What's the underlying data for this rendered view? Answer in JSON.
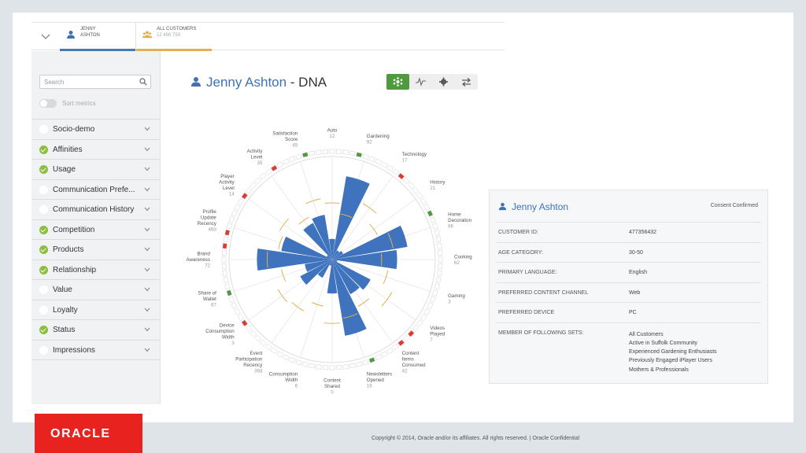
{
  "tabs": {
    "user": {
      "line1": "JENNY",
      "line2": "ASHTON"
    },
    "all": {
      "line1": "ALL CUSTOMERS",
      "line2": "12 498 750"
    }
  },
  "sidebar": {
    "search_placeholder": "Search",
    "sort_label": "Sort metrics",
    "items": [
      {
        "label": "Socio-demo",
        "checked": false
      },
      {
        "label": "Affinities",
        "checked": true
      },
      {
        "label": "Usage",
        "checked": true
      },
      {
        "label": "Communication Prefe...",
        "checked": false
      },
      {
        "label": "Communication History",
        "checked": false
      },
      {
        "label": "Competition",
        "checked": true
      },
      {
        "label": "Products",
        "checked": true
      },
      {
        "label": "Relationship",
        "checked": true
      },
      {
        "label": "Value",
        "checked": false
      },
      {
        "label": "Loyalty",
        "checked": false
      },
      {
        "label": "Status",
        "checked": true
      },
      {
        "label": "Impressions",
        "checked": false
      }
    ]
  },
  "header": {
    "name": "Jenny Ashton",
    "suffix": " - DNA"
  },
  "toolbar": {
    "buttons": [
      "dna-icon",
      "pulse-icon",
      "gear-icon",
      "swap-icon"
    ],
    "active": "dna-icon"
  },
  "colors": {
    "accent": "#3e72b5",
    "bar": "#3f73bd",
    "good": "#4f9a3f",
    "bad": "#e03a2f",
    "threshold": "#e0b052"
  },
  "chart_data": {
    "type": "polar-bar",
    "metrics": [
      {
        "name": "Auto",
        "value": "12",
        "level": 0.2
      },
      {
        "name": "Gardening",
        "value": "92",
        "level": 0.82
      },
      {
        "name": "Technology",
        "value": "17",
        "level": 0.1
      },
      {
        "name": "History",
        "value": "21",
        "level": 0.12
      },
      {
        "name": "Home Decoration",
        "value": "66",
        "level": 0.74
      },
      {
        "name": "Cooking",
        "value": "62",
        "level": 0.63
      },
      {
        "name": "Gaming",
        "value": "3",
        "level": 0.05
      },
      {
        "name": "Videos Played",
        "value": "7",
        "level": 0.42
      },
      {
        "name": "Content Items Consumed",
        "value": "42",
        "level": 0.38
      },
      {
        "name": "Newsletters Opened",
        "value": "16",
        "level": 0.75
      },
      {
        "name": "Content Shared",
        "value": "0",
        "level": 0.33
      },
      {
        "name": "Consumption Width",
        "value": "6",
        "level": 0.06
      },
      {
        "name": "Event Participation Recency",
        "value": "36d",
        "level": 0.2
      },
      {
        "name": "Device Consumption Width",
        "value": "3",
        "level": 0.35
      },
      {
        "name": "Share of Wallet",
        "value": "67",
        "level": 0.27
      },
      {
        "name": "Brand Awareness",
        "value": "72",
        "level": 0.73
      },
      {
        "name": "Profile Update Recency",
        "value": "46d",
        "level": 0.5
      },
      {
        "name": "Player Activity Level",
        "value": "14",
        "level": 0.06
      },
      {
        "name": "Activity Level",
        "value": "35",
        "level": 0.4
      },
      {
        "name": "Satisfaction Score",
        "value": "45",
        "level": 0.44
      }
    ]
  },
  "card": {
    "name": "Jenny Ashton",
    "consent": "Consent Confirmed",
    "rows": [
      {
        "key": "CUSTOMER ID:",
        "value": "477356432"
      },
      {
        "key": "AGE CATEGORY:",
        "value": "30-50"
      },
      {
        "key": "PRIMARY LANGUAGE:",
        "value": "English"
      },
      {
        "key": "PREFERRED CONTENT CHANNEL",
        "value": "Web"
      },
      {
        "key": "PREFERRED DEVICE",
        "value": "PC"
      }
    ],
    "sets_key": "MEMBER OF FOLLOWING SETS:",
    "sets": [
      "All Customers",
      "Active in Suffolk Community",
      "Experienced Gardening Enthusiasts",
      "Previously Engaged iPlayer Users",
      "Mothers & Professionals"
    ]
  },
  "footer": {
    "copyright": "Copyright © 2014, Oracle and/or its affiliates. All rights reserved.  |  Oracle Confidential",
    "logo": "ORACLE"
  }
}
